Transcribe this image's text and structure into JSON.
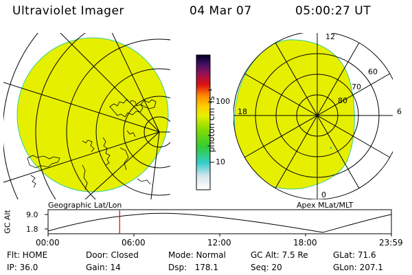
{
  "header": {
    "title": "Ultraviolet Imager",
    "date": "04 Mar 07",
    "time": "05:00:27 UT"
  },
  "colors": {
    "fill": "#e6ef00",
    "edge": "#33cc99",
    "line": "#000000",
    "marker": "#e00000"
  },
  "colorbar": {
    "unit_label": "photon cm⁻²s⁻¹",
    "ticks": [
      "100",
      "10"
    ],
    "scale": "log"
  },
  "left_panel": {
    "label": "Geographic Lat/Lon",
    "coastline_icon": "coastline-map"
  },
  "right_panel": {
    "label": "Apex MLat/MLT",
    "mlt_labels": {
      "top": "12",
      "left": "18",
      "right": "6",
      "bottom": "0"
    },
    "lat_labels": [
      "60",
      "70",
      "80"
    ]
  },
  "alt_plot": {
    "ylabel": "GC Alt",
    "yticks": [
      "9.0",
      "1.8"
    ],
    "xticks": [
      "00:00",
      "06:00",
      "12:00",
      "18:00",
      "23:59"
    ],
    "current_fraction": 0.2085
  },
  "footer": {
    "row1": {
      "flt": "Flt: HOME",
      "door": "Door: Closed",
      "mode": "Mode: Normal",
      "gcalt": "GC Alt: 7.5 Re",
      "glat": "GLat: 71.6"
    },
    "row2": {
      "ip": "IP: 36.0",
      "gain": "Gain: 14",
      "dsp": "Dsp:   178.1",
      "seq": "Seq: 20",
      "glon": "GLon: 207.1"
    }
  }
}
